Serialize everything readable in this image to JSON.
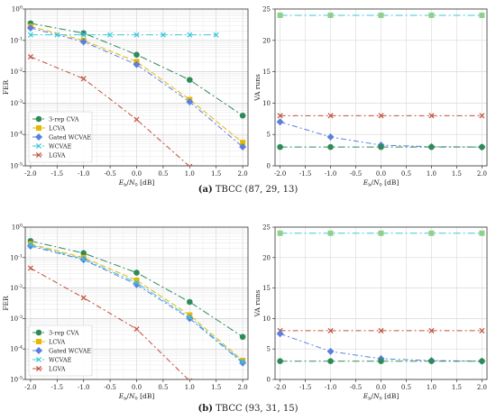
{
  "captions": [
    {
      "label": "(a)",
      "text": "TBCC (87, 29, 13)"
    },
    {
      "label": "(b)",
      "text": "TBCC (93, 31, 15)"
    }
  ],
  "chart_data": [
    {
      "type": "line",
      "panel": "a-left",
      "xlabel": "Eb/N0 [dB]",
      "ylabel": "FER",
      "yscale": "log",
      "xlim": [
        -2.1,
        2.1
      ],
      "ylim": [
        1e-05,
        1
      ],
      "xticks": [
        "-2.0",
        "-1.5",
        "-1.0",
        "-0.5",
        "0.0",
        "0.5",
        "1.0",
        "1.5",
        "2.0"
      ],
      "yticks": [
        "10^-5",
        "10^-4",
        "10^-3",
        "10^-2",
        "10^-1",
        "10^0"
      ],
      "grid": true,
      "legend_position": "lower-left",
      "series": [
        {
          "name": "3-rep CVA",
          "color": "#2e8b57",
          "marker": "circle",
          "dash": "8,3,2,3",
          "x": [
            -2,
            -1,
            0,
            1,
            2
          ],
          "y": [
            0.35,
            0.17,
            0.035,
            0.0055,
            0.0004
          ]
        },
        {
          "name": "LCVA",
          "color": "#e6b800",
          "marker": "square",
          "dash": "6,3",
          "x": [
            -2,
            -1,
            0,
            1,
            2
          ],
          "y": [
            0.28,
            0.1,
            0.021,
            0.0013,
            5.5e-05
          ]
        },
        {
          "name": "Gated WCVAE",
          "color": "#5b7fe0",
          "marker": "diamond",
          "dash": "6,3,2,3",
          "x": [
            -2,
            -1,
            0,
            1,
            2
          ],
          "y": [
            0.25,
            0.09,
            0.017,
            0.0011,
            4e-05
          ]
        },
        {
          "name": "WCVAE",
          "color": "#3cc8dc",
          "marker": "x",
          "dash": "8,3,2,3",
          "x": [
            -2,
            -1.5,
            -1,
            -0.5,
            0,
            0.5,
            1,
            1.5
          ],
          "y": [
            0.15,
            0.15,
            0.15,
            0.15,
            0.15,
            0.15,
            0.15,
            0.15
          ]
        },
        {
          "name": "LGVA",
          "color": "#c0503a",
          "marker": "x",
          "dash": "6,3,2,3",
          "x": [
            -2,
            -1,
            0,
            1
          ],
          "y": [
            0.03,
            0.006,
            0.0003,
            9.5e-06
          ]
        }
      ]
    },
    {
      "type": "line",
      "panel": "a-right",
      "xlabel": "Eb/N0 [dB]",
      "ylabel": "VA runs",
      "xlim": [
        -2.1,
        2.1
      ],
      "ylim": [
        0,
        25
      ],
      "xticks": [
        "-2.0",
        "-1.5",
        "-1.0",
        "-0.5",
        "0.0",
        "0.5",
        "1.0",
        "1.5",
        "2.0"
      ],
      "yticks": [
        "0",
        "5",
        "10",
        "15",
        "20",
        "25"
      ],
      "grid": true,
      "series": [
        {
          "name": "LCVA",
          "color": "#3cc8dc",
          "marker": "square",
          "marker_color": "#8fd18a",
          "dash": "8,3,2,3",
          "x": [
            -2,
            -1,
            0,
            1,
            2
          ],
          "y": [
            24,
            24,
            24,
            24,
            24
          ]
        },
        {
          "name": "LGVA",
          "color": "#c0503a",
          "marker": "x",
          "dash": "6,3,2,3",
          "x": [
            -2,
            -1,
            0,
            1,
            2
          ],
          "y": [
            8,
            8,
            8,
            8,
            8
          ]
        },
        {
          "name": "Gated WCVAE",
          "color": "#5b7fe0",
          "marker": "diamond",
          "dash": "6,3,2,3",
          "x": [
            -2,
            -1,
            0,
            1,
            2
          ],
          "y": [
            7,
            4.6,
            3.3,
            3.05,
            3
          ]
        },
        {
          "name": "3-rep CVA",
          "color": "#2e8b57",
          "marker": "circle",
          "dash": "8,3,2,3",
          "x": [
            -2,
            -1,
            0,
            1,
            2
          ],
          "y": [
            3,
            3,
            3,
            3,
            3
          ]
        }
      ]
    },
    {
      "type": "line",
      "panel": "b-left",
      "xlabel": "Eb/N0 [dB]",
      "ylabel": "FER",
      "yscale": "log",
      "xlim": [
        -2.1,
        2.1
      ],
      "ylim": [
        1e-05,
        1
      ],
      "xticks": [
        "-2.0",
        "-1.5",
        "-1.0",
        "-0.5",
        "0.0",
        "0.5",
        "1.0",
        "1.5",
        "2.0"
      ],
      "yticks": [
        "10^-5",
        "10^-4",
        "10^-3",
        "10^-2",
        "10^-1",
        "10^0"
      ],
      "grid": true,
      "legend_position": "lower-left",
      "series": [
        {
          "name": "3-rep CVA",
          "color": "#2e8b57",
          "marker": "circle",
          "dash": "8,3,2,3",
          "x": [
            -2,
            -1,
            0,
            1,
            2
          ],
          "y": [
            0.35,
            0.14,
            0.032,
            0.0035,
            0.00025
          ]
        },
        {
          "name": "LCVA",
          "color": "#e6b800",
          "marker": "square",
          "dash": "6,3",
          "x": [
            -2,
            -1,
            0,
            1,
            2
          ],
          "y": [
            0.28,
            0.1,
            0.018,
            0.0013,
            4.2e-05
          ]
        },
        {
          "name": "Gated WCVAE",
          "color": "#5b7fe0",
          "marker": "diamond",
          "dash": "6,3,2,3",
          "x": [
            -2,
            -1,
            0,
            1,
            2
          ],
          "y": [
            0.24,
            0.085,
            0.013,
            0.001,
            3.5e-05
          ]
        },
        {
          "name": "WCVAE",
          "color": "#3cc8dc",
          "marker": "x",
          "dash": "8,3,2,3",
          "x": [
            -2,
            -1,
            0,
            1,
            2
          ],
          "y": [
            0.26,
            0.09,
            0.015,
            0.0011,
            3.8e-05
          ]
        },
        {
          "name": "LGVA",
          "color": "#c0503a",
          "marker": "x",
          "dash": "6,3,2,3",
          "x": [
            -2,
            -1,
            0,
            1
          ],
          "y": [
            0.045,
            0.0048,
            0.00045,
            9e-06
          ]
        }
      ]
    },
    {
      "type": "line",
      "panel": "b-right",
      "xlabel": "Eb/N0 [dB]",
      "ylabel": "VA runs",
      "xlim": [
        -2.1,
        2.1
      ],
      "ylim": [
        0,
        25
      ],
      "xticks": [
        "-2.0",
        "-1.5",
        "-1.0",
        "-0.5",
        "0.0",
        "0.5",
        "1.0",
        "1.5",
        "2.0"
      ],
      "yticks": [
        "0",
        "5",
        "10",
        "15",
        "20",
        "25"
      ],
      "grid": true,
      "series": [
        {
          "name": "LCVA",
          "color": "#3cc8dc",
          "marker": "square",
          "marker_color": "#8fd18a",
          "dash": "8,3,2,3",
          "x": [
            -2,
            -1,
            0,
            1,
            2
          ],
          "y": [
            24,
            24,
            24,
            24,
            24
          ]
        },
        {
          "name": "LGVA",
          "color": "#c0503a",
          "marker": "x",
          "dash": "6,3,2,3",
          "x": [
            -2,
            -1,
            0,
            1,
            2
          ],
          "y": [
            8,
            8,
            8,
            8,
            8
          ]
        },
        {
          "name": "Gated WCVAE",
          "color": "#5b7fe0",
          "marker": "diamond",
          "dash": "6,3,2,3",
          "x": [
            -2,
            -1,
            0,
            1,
            2
          ],
          "y": [
            7.5,
            4.6,
            3.4,
            3.1,
            3
          ]
        },
        {
          "name": "3-rep CVA",
          "color": "#2e8b57",
          "marker": "circle",
          "dash": "8,3,2,3",
          "x": [
            -2,
            -1,
            0,
            1,
            2
          ],
          "y": [
            3,
            3,
            3,
            3,
            3
          ]
        }
      ]
    }
  ]
}
